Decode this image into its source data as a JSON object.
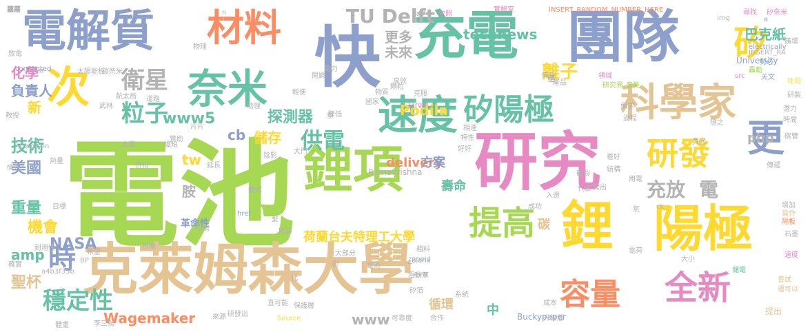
{
  "palette": {
    "green": "#a6d854",
    "tan": "#e5c494",
    "pink": "#e78ac3",
    "teal": "#66c2a5",
    "blue": "#8da0cb",
    "yellow": "#ffd92f",
    "orange": "#fc8d62",
    "grey": "#b3b3b3"
  },
  "words": [
    {
      "text": "電池",
      "weight": 1.0,
      "color": "green"
    },
    {
      "text": "克萊姆森大學",
      "weight": 0.62,
      "color": "tan"
    },
    {
      "text": "研究",
      "weight": 0.66,
      "color": "pink"
    },
    {
      "text": "團隊",
      "weight": 0.5,
      "color": "blue"
    },
    {
      "text": "充電",
      "weight": 0.48,
      "color": "teal"
    },
    {
      "text": "快",
      "weight": 0.55,
      "color": "blue"
    },
    {
      "text": "鋰項",
      "weight": 0.42,
      "color": "green"
    },
    {
      "text": "電解質",
      "weight": 0.4,
      "color": "blue"
    },
    {
      "text": "陽極",
      "weight": 0.45,
      "color": "yellow"
    },
    {
      "text": "鋰",
      "weight": 0.48,
      "color": "yellow"
    },
    {
      "text": "奈米",
      "weight": 0.38,
      "color": "teal"
    },
    {
      "text": "材料",
      "weight": 0.36,
      "color": "orange"
    },
    {
      "text": "次",
      "weight": 0.38,
      "color": "yellow"
    },
    {
      "text": "速度",
      "weight": 0.32,
      "color": "teal"
    },
    {
      "text": "科學家",
      "weight": 0.33,
      "color": "tan"
    },
    {
      "text": "矽陽極",
      "weight": 0.3,
      "color": "teal"
    },
    {
      "text": "研發",
      "weight": 0.28,
      "color": "yellow"
    },
    {
      "text": "更",
      "weight": 0.3,
      "color": "blue"
    },
    {
      "text": "提高",
      "weight": 0.3,
      "color": "green"
    },
    {
      "text": "容量",
      "weight": 0.28,
      "color": "orange"
    },
    {
      "text": "全新",
      "weight": 0.28,
      "color": "pink"
    },
    {
      "text": "矽",
      "weight": 0.3,
      "color": "yellow"
    },
    {
      "text": "時",
      "weight": 0.24,
      "color": "blue"
    },
    {
      "text": "穩定性",
      "weight": 0.2,
      "color": "teal"
    },
    {
      "text": "衛星",
      "weight": 0.2,
      "color": "grey"
    },
    {
      "text": "粒子",
      "weight": 0.2,
      "color": "teal"
    },
    {
      "text": "TU Delft",
      "weight": 0.17,
      "color": "grey"
    },
    {
      "text": "供電",
      "weight": 0.2,
      "color": "teal"
    },
    {
      "text": "荷蘭台夫特理工大學",
      "weight": 0.14,
      "color": "yellow"
    },
    {
      "text": "充放",
      "weight": 0.17,
      "color": "grey"
    },
    {
      "text": "電",
      "weight": 0.17,
      "color": "grey"
    },
    {
      "text": "離子",
      "weight": 0.14,
      "color": "yellow"
    },
    {
      "text": "technews",
      "weight": 0.12,
      "color": "teal"
    },
    {
      "text": "巴克紙",
      "weight": 0.12,
      "color": "teal"
    },
    {
      "text": "探測器",
      "weight": 0.12,
      "color": "teal"
    },
    {
      "text": "www5",
      "weight": 0.12,
      "color": "teal"
    },
    {
      "text": "Podila",
      "weight": 0.12,
      "color": "yellow"
    },
    {
      "text": "delivery",
      "weight": 0.12,
      "color": "orange"
    },
    {
      "text": "方案",
      "weight": 0.12,
      "color": "blue"
    },
    {
      "text": "壽命",
      "weight": 0.12,
      "color": "teal"
    },
    {
      "text": "儲存",
      "weight": 0.12,
      "color": "yellow"
    },
    {
      "text": "技術",
      "weight": 0.12,
      "color": "teal"
    },
    {
      "text": "美國",
      "weight": 0.12,
      "color": "blue"
    },
    {
      "text": "重量",
      "weight": 0.12,
      "color": "teal"
    },
    {
      "text": "機會",
      "weight": 0.12,
      "color": "yellow"
    },
    {
      "text": "NASA",
      "weight": 0.12,
      "color": "blue"
    },
    {
      "text": "amp",
      "weight": 0.12,
      "color": "teal"
    },
    {
      "text": "聖杯",
      "weight": 0.12,
      "color": "tan"
    },
    {
      "text": "化學",
      "weight": 0.1,
      "color": "pink"
    },
    {
      "text": "負責人",
      "weight": 0.1,
      "color": "blue"
    },
    {
      "text": "新",
      "weight": 0.1,
      "color": "yellow"
    },
    {
      "text": "更多",
      "weight": 0.1,
      "color": "grey"
    },
    {
      "text": "未來",
      "weight": 0.1,
      "color": "grey"
    },
    {
      "text": "php",
      "weight": 0.1,
      "color": "grey"
    },
    {
      "text": "cb",
      "weight": 0.1,
      "color": "blue"
    },
    {
      "text": "tw",
      "weight": 0.1,
      "color": "yellow"
    },
    {
      "text": "胺",
      "weight": 0.1,
      "color": "grey"
    },
    {
      "text": "Wagemaker",
      "weight": 0.1,
      "color": "orange"
    },
    {
      "text": "www",
      "weight": 0.1,
      "color": "grey"
    },
    {
      "text": "循環",
      "weight": 0.1,
      "color": "tan"
    },
    {
      "text": "中",
      "weight": 0.1,
      "color": "teal"
    },
    {
      "text": "碳",
      "weight": 0.1,
      "color": "tan"
    },
    {
      "text": "革命性",
      "weight": 0.07,
      "color": "blue"
    },
    {
      "text": "倍",
      "weight": 0.07,
      "color": "grey"
    },
    {
      "text": "Buckypaper",
      "weight": 0.05,
      "color": "blue"
    },
    {
      "text": "Ramakrishna",
      "weight": 0.05,
      "color": "grey"
    },
    {
      "text": "University",
      "weight": 0.05,
      "color": "blue"
    },
    {
      "text": "INSERT_RANDOM_NUMBER_HERE",
      "weight": 0.04,
      "color": "orange"
    },
    {
      "text": "connected",
      "weight": 0.04,
      "color": "blue"
    },
    {
      "text": "electrically",
      "weight": 0.04,
      "color": "blue"
    },
    {
      "text": "Clemson",
      "weight": 0.05,
      "color": "grey"
    },
    {
      "text": "_blank",
      "weight": 0.04,
      "color": "blue"
    },
    {
      "text": "Source",
      "weight": 0.04,
      "color": "yellow"
    },
    {
      "text": "a4b3f35b",
      "weight": 0.04,
      "color": "grey"
    },
    {
      "text": "href",
      "weight": 0.04,
      "color": "blue"
    },
    {
      "text": "img",
      "weight": 0.04,
      "color": "grey"
    },
    {
      "text": "target",
      "weight": 0.04,
      "color": "pink"
    },
    {
      "text": "zoneid",
      "weight": 0.04,
      "color": "grey"
    },
    {
      "text": "INSERT_RA",
      "weight": 0.04,
      "color": "grey"
    },
    {
      "text": "src",
      "weight": 0.04,
      "color": "pink"
    },
    {
      "text": "avw",
      "weight": 0.04,
      "color": "grey"
    },
    {
      "text": "BP",
      "weight": 0.04,
      "color": "grey"
    },
    {
      "text": "ck",
      "weight": 0.04,
      "color": "grey"
    },
    {
      "text": "a",
      "weight": 0.04,
      "color": "blue"
    },
    {
      "text": "n",
      "weight": 0.04,
      "color": "grey"
    },
    {
      "text": "火星",
      "weight": 0.04,
      "color": "grey"
    },
    {
      "text": "依照",
      "weight": 0.04,
      "color": "pink"
    },
    {
      "text": "尋找",
      "weight": 0.04,
      "color": "pink"
    },
    {
      "text": "矽奈米",
      "weight": 0.04,
      "color": "pink"
    },
    {
      "text": "實驗室",
      "weight": 0.04,
      "color": "pink"
    },
    {
      "text": "擴增",
      "weight": 0.04,
      "color": "grey"
    },
    {
      "text": "領域",
      "weight": 0.04,
      "color": "pink"
    },
    {
      "text": "研究界",
      "weight": 0.04,
      "color": "green"
    },
    {
      "text": "產業",
      "weight": 0.04,
      "color": "green"
    },
    {
      "text": "轟動",
      "weight": 0.04,
      "color": "green"
    },
    {
      "text": "天文",
      "weight": 0.04,
      "color": "blue"
    },
    {
      "text": "勢必",
      "weight": 0.04,
      "color": "blue"
    },
    {
      "text": "吐司",
      "weight": 0.04,
      "color": "yellow"
    },
    {
      "text": "研製",
      "weight": 0.04,
      "color": "grey"
    },
    {
      "text": "潛力",
      "weight": 0.04,
      "color": "grey"
    },
    {
      "text": "時間",
      "weight": 0.04,
      "color": "grey"
    },
    {
      "text": "備求",
      "weight": 0.04,
      "color": "grey"
    },
    {
      "text": "過程",
      "weight": 0.04,
      "color": "grey"
    },
    {
      "text": "隨之",
      "weight": 0.04,
      "color": "grey"
    },
    {
      "text": "碳管",
      "weight": 0.04,
      "color": "grey"
    },
    {
      "text": "增加",
      "weight": 0.04,
      "color": "grey"
    },
    {
      "text": "當作",
      "weight": 0.04,
      "color": "tan"
    },
    {
      "text": "隔板",
      "weight": 0.04,
      "color": "orange"
    },
    {
      "text": "石墨",
      "weight": 0.04,
      "color": "grey"
    },
    {
      "text": "速度",
      "weight": 0.04,
      "color": "pink"
    },
    {
      "text": "儲電",
      "weight": 0.04,
      "color": "teal"
    },
    {
      "text": "嘗試",
      "weight": 0.04,
      "color": "tan"
    },
    {
      "text": "還可以",
      "weight": 0.04,
      "color": "tan"
    },
    {
      "text": "提出",
      "weight": 0.04,
      "color": "tan"
    },
    {
      "text": "升級版",
      "weight": 0.05,
      "color": "grey"
    },
    {
      "text": "成本",
      "weight": 0.04,
      "color": "grey"
    },
    {
      "text": "合作",
      "weight": 0.04,
      "color": "grey"
    },
    {
      "text": "可靠度",
      "weight": 0.04,
      "color": "grey"
    },
    {
      "text": "矽箔",
      "weight": 0.04,
      "color": "grey"
    },
    {
      "text": "電動車",
      "weight": 0.04,
      "color": "grey"
    },
    {
      "text": "電流",
      "weight": 0.04,
      "color": "grey"
    },
    {
      "text": "系統",
      "weight": 0.04,
      "color": "grey"
    },
    {
      "text": "粗料",
      "weight": 0.04,
      "color": "grey"
    },
    {
      "text": "大部分",
      "weight": 0.04,
      "color": "grey"
    },
    {
      "text": "來源",
      "weight": 0.04,
      "color": "grey"
    },
    {
      "text": "保護層",
      "weight": 0.04,
      "color": "grey"
    },
    {
      "text": "研發出",
      "weight": 0.04,
      "color": "grey"
    },
    {
      "text": "代",
      "weight": 0.04,
      "color": "grey"
    },
    {
      "text": "影",
      "weight": 0.04,
      "color": "grey"
    },
    {
      "text": "髮",
      "weight": 0.04,
      "color": "grey"
    },
    {
      "text": "膨脹",
      "weight": 0.04,
      "color": "grey"
    },
    {
      "text": "市場",
      "weight": 0.04,
      "color": "grey"
    },
    {
      "text": "折騰",
      "weight": 0.04,
      "color": "grey"
    },
    {
      "text": "希望",
      "weight": 0.04,
      "color": "grey"
    },
    {
      "text": "確實",
      "weight": 0.04,
      "color": "grey"
    },
    {
      "text": "耐用性",
      "weight": 0.04,
      "color": "grey"
    },
    {
      "text": "目標",
      "weight": 0.04,
      "color": "grey"
    },
    {
      "text": "熱量",
      "weight": 0.04,
      "color": "grey"
    },
    {
      "text": "情況",
      "weight": 0.04,
      "color": "grey"
    },
    {
      "text": "教授",
      "weight": 0.04,
      "color": "grey"
    },
    {
      "text": "武林",
      "weight": 0.04,
      "color": "grey"
    },
    {
      "text": "太陽能板",
      "weight": 0.04,
      "color": "grey"
    },
    {
      "text": "碳奈米",
      "weight": 0.04,
      "color": "grey"
    },
    {
      "text": "宇宙",
      "weight": 0.04,
      "color": "grey"
    },
    {
      "text": "物理",
      "weight": 0.04,
      "color": "grey"
    },
    {
      "text": "放電",
      "weight": 0.04,
      "color": "grey"
    },
    {
      "text": "助理",
      "weight": 0.04,
      "color": "grey"
    },
    {
      "text": "輕便",
      "weight": 0.04,
      "color": "grey"
    },
    {
      "text": "重",
      "weight": 0.04,
      "color": "grey"
    },
    {
      "text": "國家",
      "weight": 0.04,
      "color": "grey"
    },
    {
      "text": "降低",
      "weight": 0.04,
      "color": "grey"
    },
    {
      "text": "航太局",
      "weight": 0.04,
      "color": "grey"
    },
    {
      "text": "道路",
      "weight": 0.04,
      "color": "grey"
    },
    {
      "text": "片片",
      "weight": 0.04,
      "color": "grey"
    },
    {
      "text": "贊助",
      "weight": 0.04,
      "color": "grey"
    },
    {
      "text": "陰影",
      "weight": 0.04,
      "color": "grey"
    },
    {
      "text": "延長",
      "weight": 0.04,
      "color": "grey"
    },
    {
      "text": "纖短",
      "weight": 0.04,
      "color": "grey"
    },
    {
      "text": "折扣",
      "weight": 0.04,
      "color": "grey"
    },
    {
      "text": "體重",
      "weight": 0.04,
      "color": "grey"
    },
    {
      "text": "李三揚",
      "weight": 0.04,
      "color": "grey"
    },
    {
      "text": "直可能",
      "weight": 0.04,
      "color": "grey"
    },
    {
      "text": "成功",
      "weight": 0.04,
      "color": "grey"
    },
    {
      "text": "入選",
      "weight": 0.04,
      "color": "grey"
    },
    {
      "text": "買回",
      "weight": 0.04,
      "color": "grey"
    },
    {
      "text": "代表",
      "weight": 0.04,
      "color": "grey"
    },
    {
      "text": "跨出",
      "weight": 0.04,
      "color": "grey"
    },
    {
      "text": "破裂",
      "weight": 0.04,
      "color": "grey"
    },
    {
      "text": "看好",
      "weight": 0.04,
      "color": "grey"
    },
    {
      "text": "結構",
      "weight": 0.04,
      "color": "grey"
    },
    {
      "text": "用電",
      "weight": 0.04,
      "color": "grey"
    },
    {
      "text": "氧",
      "weight": 0.04,
      "color": "grey"
    },
    {
      "text": "電荷",
      "weight": 0.04,
      "color": "grey"
    },
    {
      "text": "大小",
      "weight": 0.04,
      "color": "grey"
    },
    {
      "text": "備受",
      "weight": 0.04,
      "color": "grey"
    },
    {
      "text": "產品",
      "weight": 0.04,
      "color": "grey"
    },
    {
      "text": "克服",
      "weight": 0.04,
      "color": "grey"
    },
    {
      "text": "高效",
      "weight": 0.04,
      "color": "grey"
    },
    {
      "text": "顆粒",
      "weight": 0.04,
      "color": "grey"
    },
    {
      "text": "物質",
      "weight": 0.04,
      "color": "grey"
    },
    {
      "text": "好好",
      "weight": 0.04,
      "color": "grey"
    },
    {
      "text": "特性",
      "weight": 0.04,
      "color": "grey"
    },
    {
      "text": "相連",
      "weight": 0.04,
      "color": "grey"
    },
    {
      "text": "電力",
      "weight": 0.04,
      "color": "grey"
    },
    {
      "text": "開闢",
      "weight": 0.04,
      "color": "grey"
    },
    {
      "text": "大門",
      "weight": 0.04,
      "color": "grey"
    },
    {
      "text": "便",
      "weight": 0.04,
      "color": "grey"
    },
    {
      "text": "傳遞",
      "weight": 0.04,
      "color": "grey"
    },
    {
      "text": "達成",
      "weight": 0.04,
      "color": "grey"
    },
    {
      "text": "支援",
      "weight": 0.04,
      "color": "grey"
    },
    {
      "text": "溫度",
      "weight": 0.04,
      "color": "grey"
    },
    {
      "text": "兵器",
      "weight": 0.04,
      "color": "grey"
    },
    {
      "text": "藥事",
      "weight": 0.04,
      "color": "grey"
    },
    {
      "text": "波",
      "weight": 0.04,
      "color": "grey"
    },
    {
      "text": "稿件",
      "weight": 0.04,
      "color": "grey"
    }
  ]
}
